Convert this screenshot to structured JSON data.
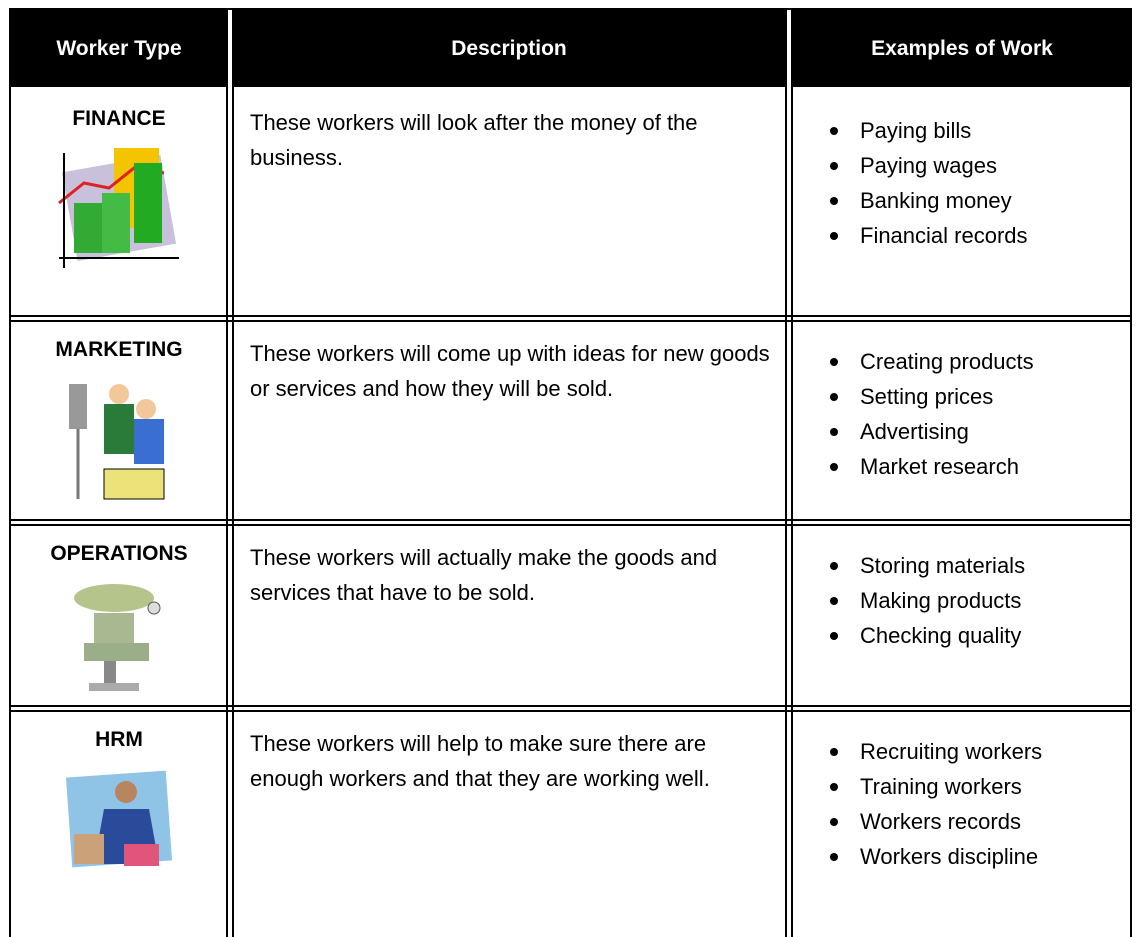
{
  "table": {
    "headers": [
      "Worker Type",
      "Description",
      "Examples of Work"
    ],
    "rows": [
      {
        "type": "FINANCE",
        "description": "These workers will look after the money of the business.",
        "examples": [
          "Paying bills",
          "Paying wages",
          "Banking money",
          "Financial records"
        ]
      },
      {
        "type": "MARKETING",
        "description": "These workers will come up with ideas for new goods or services and how they will be sold.",
        "examples": [
          "Creating products",
          "Setting prices",
          "Advertising",
          "Market research"
        ]
      },
      {
        "type": "OPERATIONS",
        "description": "These workers will actually make the goods and services that have to be sold.",
        "examples": [
          "Storing materials",
          "Making products",
          "Checking quality"
        ]
      },
      {
        "type": "HRM",
        "description": "These workers will help to make sure there are enough workers and that they are working well.",
        "examples": [
          "Recruiting workers",
          "Training workers",
          "Workers records",
          "Workers discipline"
        ]
      }
    ]
  }
}
